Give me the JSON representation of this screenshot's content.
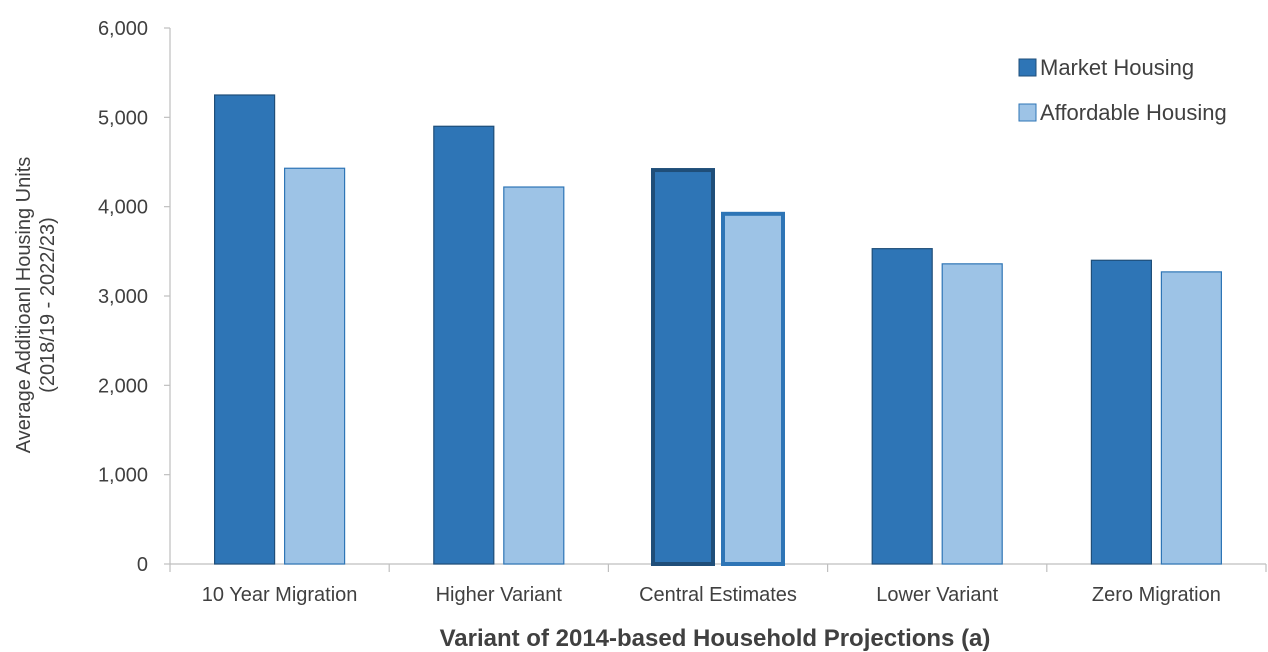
{
  "chart_data": {
    "type": "bar",
    "categories": [
      "10 Year Migration",
      "Higher Variant",
      "Central Estimates",
      "Lower Variant",
      "Zero Migration"
    ],
    "series": [
      {
        "name": "Market Housing",
        "values": [
          5250,
          4900,
          4410,
          3530,
          3400
        ],
        "color": "#2e75b6",
        "stroke": "#1f4e79"
      },
      {
        "name": "Affordable Housing",
        "values": [
          4430,
          4220,
          3920,
          3360,
          3270
        ],
        "color": "#9dc3e6",
        "stroke": "#2e75b6"
      }
    ],
    "highlighted_category": "Central Estimates",
    "xlabel": "Variant of 2014-based Household Projections (a)",
    "ylabel": [
      "Average  Additioanl  Housing Units",
      "(2018/19  - 2022/23)"
    ],
    "ylim": [
      0,
      6000
    ],
    "yticks": [
      {
        "value": 0,
        "label": "0"
      },
      {
        "value": 1000,
        "label": "1,000"
      },
      {
        "value": 2000,
        "label": "2,000"
      },
      {
        "value": 3000,
        "label": "3,000"
      },
      {
        "value": 4000,
        "label": "4,000"
      },
      {
        "value": 5000,
        "label": "5,000"
      },
      {
        "value": 6000,
        "label": "6,000"
      }
    ],
    "legend": "top-right",
    "grid": false
  }
}
